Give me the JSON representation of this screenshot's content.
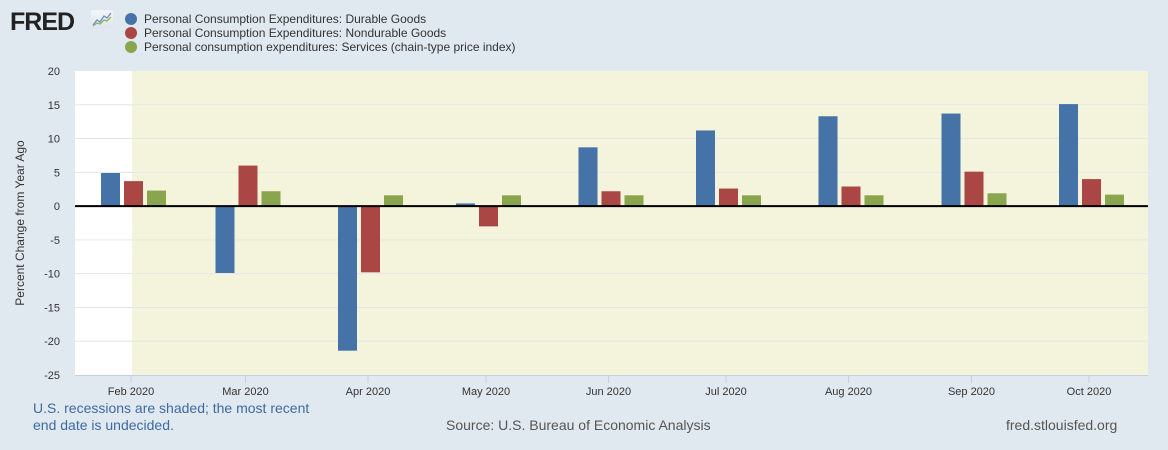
{
  "header": {
    "logo_text": "FRED",
    "logo_icon": "chart-line-icon"
  },
  "footer": {
    "recession_note_line1": "U.S. recessions are shaded; the most recent",
    "recession_note_line2": "end date is undecided.",
    "source": "Source: U.S. Bureau of Economic Analysis",
    "site": "fred.stlouisfed.org"
  },
  "colors": {
    "background": "#e1e9f0",
    "recession_shade": "#f4f4dc",
    "zero_line": "#000000"
  },
  "chart_data": {
    "type": "bar",
    "title": "",
    "xlabel": "",
    "ylabel": "Percent Change from Year Ago",
    "categories": [
      "Feb 2020",
      "Mar 2020",
      "Apr 2020",
      "May 2020",
      "Jun 2020",
      "Jul 2020",
      "Aug 2020",
      "Sep 2020",
      "Oct 2020"
    ],
    "ylim": [
      -25,
      20
    ],
    "yticks": [
      20,
      15,
      10,
      5,
      0,
      -5,
      -10,
      -15,
      -20,
      -25
    ],
    "grid": true,
    "legend_position": "top-left",
    "recession_shading": {
      "start": "Mar 2020",
      "end": "Oct 2020 (ongoing)"
    },
    "series": [
      {
        "name": "Personal Consumption Expenditures: Durable Goods",
        "color": "#4572a7",
        "values": [
          4.9,
          -9.9,
          -21.4,
          0.4,
          8.7,
          11.2,
          13.3,
          13.7,
          15.1
        ]
      },
      {
        "name": "Personal Consumption Expenditures: Nondurable Goods",
        "color": "#aa4643",
        "values": [
          3.7,
          6.0,
          -9.8,
          -3.0,
          2.2,
          2.6,
          2.9,
          5.1,
          4.0
        ]
      },
      {
        "name": "Personal consumption expenditures: Services (chain-type price index)",
        "color": "#89a54e",
        "values": [
          2.3,
          2.2,
          1.6,
          1.6,
          1.6,
          1.6,
          1.6,
          1.9,
          1.7
        ]
      }
    ]
  }
}
